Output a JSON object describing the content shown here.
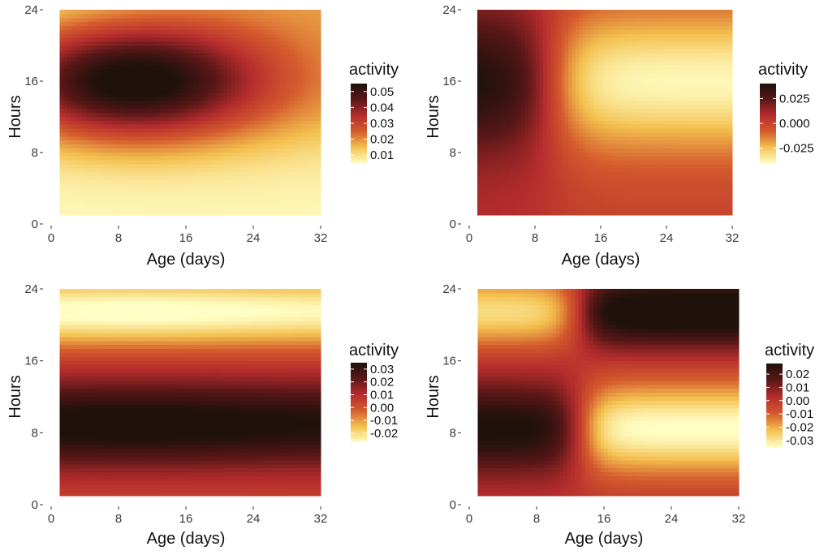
{
  "chart_data": [
    {
      "type": "heatmap",
      "xlabel": "Age (days)",
      "ylabel": "Hours",
      "xlim": [
        0,
        32
      ],
      "ylim": [
        0,
        24
      ],
      "x_ticks": [
        "0",
        "8",
        "16",
        "24",
        "32"
      ],
      "y_ticks": [
        "0",
        "8",
        "16",
        "24"
      ],
      "data_x_range": [
        1,
        32
      ],
      "data_y_range": [
        1,
        24
      ],
      "legend_title": "activity",
      "legend_labels": [
        "0.05",
        "0.04",
        "0.03",
        "0.02",
        "0.01"
      ],
      "value_range": [
        0.005,
        0.055
      ],
      "colorscale": [
        "#fffec4",
        "#f3c04e",
        "#d45b2d",
        "#b52c2d",
        "#5a1717",
        "#1f110b"
      ],
      "surface": {
        "description_values": "activity at sampled points",
        "points": [
          {
            "age": 9,
            "hour": 16,
            "activity": 0.055
          },
          {
            "age": 32,
            "hour": 16,
            "activity": 0.028
          },
          {
            "age": 16,
            "hour": 8,
            "activity": 0.022
          },
          {
            "age": 16,
            "hour": 1,
            "activity": 0.006
          },
          {
            "age": 16,
            "hour": 24,
            "activity": 0.024
          }
        ]
      }
    },
    {
      "type": "heatmap",
      "xlabel": "Age (days)",
      "ylabel": "Hours",
      "xlim": [
        0,
        32
      ],
      "ylim": [
        0,
        24
      ],
      "x_ticks": [
        "0",
        "8",
        "16",
        "24",
        "32"
      ],
      "y_ticks": [
        "0",
        "8",
        "16",
        "24"
      ],
      "data_x_range": [
        1,
        32
      ],
      "data_y_range": [
        1,
        24
      ],
      "legend_title": "activity",
      "legend_labels": [
        "0.025",
        "0.000",
        "-0.025"
      ],
      "value_range": [
        -0.04,
        0.04
      ],
      "colorscale": [
        "#fffec4",
        "#f3c04e",
        "#d45b2d",
        "#b52c2d",
        "#5a1717",
        "#1f110b"
      ],
      "surface": {
        "points": [
          {
            "age": 4,
            "hour": 16,
            "activity": 0.04
          },
          {
            "age": 4,
            "hour": 1,
            "activity": 0.01
          },
          {
            "age": 26,
            "hour": 16,
            "activity": -0.038
          },
          {
            "age": 26,
            "hour": 1,
            "activity": 0.0
          }
        ]
      }
    },
    {
      "type": "heatmap",
      "xlabel": "Age (days)",
      "ylabel": "Hours",
      "xlim": [
        0,
        32
      ],
      "ylim": [
        0,
        24
      ],
      "x_ticks": [
        "0",
        "8",
        "16",
        "24",
        "32"
      ],
      "y_ticks": [
        "0",
        "8",
        "16",
        "24"
      ],
      "data_x_range": [
        1,
        32
      ],
      "data_y_range": [
        1,
        24
      ],
      "legend_title": "activity",
      "legend_labels": [
        "0.03",
        "0.02",
        "0.01",
        "0.00",
        "-0.01",
        "-0.02"
      ],
      "value_range": [
        -0.027,
        0.035
      ],
      "colorscale": [
        "#fffec4",
        "#f3c04e",
        "#d45b2d",
        "#b52c2d",
        "#5a1717",
        "#1f110b"
      ],
      "surface": {
        "points": [
          {
            "age": 10,
            "hour": 9,
            "activity": 0.035
          },
          {
            "age": 10,
            "hour": 21,
            "activity": -0.027
          },
          {
            "age": 10,
            "hour": 1,
            "activity": 0.01
          },
          {
            "age": 10,
            "hour": 15,
            "activity": 0.005
          }
        ]
      }
    },
    {
      "type": "heatmap",
      "xlabel": "Age (days)",
      "ylabel": "Hours",
      "xlim": [
        0,
        32
      ],
      "ylim": [
        0,
        24
      ],
      "x_ticks": [
        "0",
        "8",
        "16",
        "24",
        "32"
      ],
      "y_ticks": [
        "0",
        "8",
        "16",
        "24"
      ],
      "data_x_range": [
        1,
        32
      ],
      "data_y_range": [
        1,
        24
      ],
      "legend_title": "activity",
      "legend_labels": [
        "0.02",
        "0.01",
        "0.00",
        "-0.01",
        "-0.02",
        "-0.03"
      ],
      "value_range": [
        -0.035,
        0.028
      ],
      "colorscale": [
        "#fffec4",
        "#f3c04e",
        "#d45b2d",
        "#b52c2d",
        "#5a1717",
        "#1f110b"
      ],
      "surface": {
        "points": [
          {
            "age": 3,
            "hour": 9,
            "activity": 0.028
          },
          {
            "age": 26,
            "hour": 21,
            "activity": 0.028
          },
          {
            "age": 3,
            "hour": 21,
            "activity": -0.028
          },
          {
            "age": 26,
            "hour": 9,
            "activity": -0.035
          }
        ]
      }
    }
  ]
}
